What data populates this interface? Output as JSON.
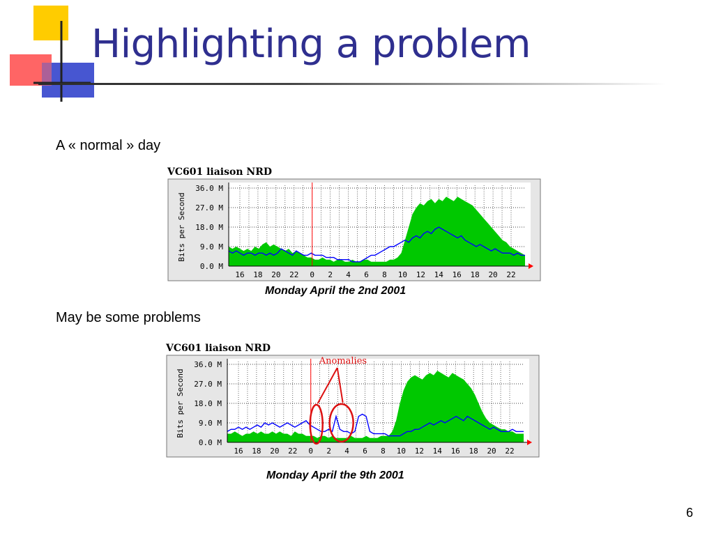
{
  "slide": {
    "title": "Highlighting a problem",
    "section1_text": "A « normal » day",
    "section2_text": "May be some problems",
    "page_number": "6"
  },
  "colors": {
    "title": "#2f2f8f",
    "traffic_in": "#00c800",
    "traffic_out": "#0000ff",
    "anomaly": "#dd1111",
    "chart_bg": "#ffffff",
    "frame_bg": "#e6e6e6"
  },
  "chart_data": [
    {
      "type": "area",
      "title": "VC601 liaison NRD",
      "caption": "Monday April  the 2nd 2001",
      "ylabel": "Bits per Second",
      "yticks": [
        "36.0 M",
        "27.0 M",
        "18.0 M",
        "9.0 M",
        "0.0 M"
      ],
      "ylim": [
        0,
        36
      ],
      "xticks": [
        "16",
        "18",
        "20",
        "22",
        "0",
        "2",
        "4",
        "6",
        "8",
        "10",
        "12",
        "14",
        "16",
        "18",
        "20",
        "22"
      ],
      "grid": true,
      "marker_hour": 0,
      "series": [
        {
          "values": [
            9,
            8,
            9,
            8,
            7,
            8,
            7,
            9,
            8,
            10,
            11,
            9,
            10,
            9,
            8,
            7,
            8,
            6,
            7,
            6,
            5,
            4,
            4,
            3,
            3,
            4,
            3,
            3,
            2,
            3,
            3,
            2,
            2,
            3,
            2,
            2,
            3,
            3,
            2,
            2,
            2,
            2,
            2,
            3,
            3,
            4,
            6,
            12,
            18,
            24,
            27,
            29,
            28,
            30,
            31,
            29,
            31,
            30,
            32,
            31,
            30,
            32,
            31,
            30,
            29,
            28,
            26,
            24,
            22,
            20,
            18,
            16,
            14,
            12,
            11,
            9,
            8,
            7,
            6,
            5
          ]
        },
        {
          "values": [
            7,
            6,
            7,
            6,
            5,
            6,
            6,
            5,
            6,
            6,
            5,
            6,
            5,
            6,
            8,
            7,
            6,
            5,
            7,
            6,
            5,
            5,
            6,
            5,
            5,
            5,
            4,
            4,
            4,
            3,
            3,
            3,
            3,
            2,
            2,
            2,
            3,
            4,
            5,
            5,
            6,
            7,
            8,
            9,
            9,
            10,
            11,
            12,
            11,
            13,
            14,
            13,
            15,
            16,
            15,
            17,
            18,
            17,
            16,
            15,
            14,
            13,
            14,
            12,
            11,
            10,
            9,
            10,
            9,
            8,
            7,
            8,
            7,
            6,
            6,
            6,
            5,
            6,
            5,
            5
          ]
        }
      ]
    },
    {
      "type": "area",
      "title": "VC601 liaison NRD",
      "caption": "Monday April the 9th 2001",
      "ylabel": "Bits per Second",
      "yticks": [
        "36.0 M",
        "27.0 M",
        "18.0 M",
        "9.0 M",
        "0.0 M"
      ],
      "ylim": [
        0,
        36
      ],
      "xticks": [
        "16",
        "18",
        "20",
        "22",
        "0",
        "2",
        "4",
        "6",
        "8",
        "10",
        "12",
        "14",
        "16",
        "18",
        "20",
        "22"
      ],
      "grid": true,
      "marker_hour": 0,
      "annotation": "Anomalies",
      "series": [
        {
          "values": [
            4,
            4,
            5,
            4,
            3,
            4,
            4,
            5,
            4,
            5,
            4,
            4,
            5,
            4,
            5,
            4,
            4,
            3,
            5,
            4,
            4,
            3,
            3,
            3,
            2,
            3,
            3,
            2,
            3,
            2,
            2,
            2,
            2,
            3,
            2,
            2,
            2,
            3,
            2,
            2,
            2,
            3,
            3,
            3,
            5,
            10,
            18,
            24,
            28,
            30,
            31,
            30,
            29,
            31,
            32,
            31,
            33,
            32,
            31,
            30,
            32,
            31,
            30,
            29,
            27,
            25,
            22,
            18,
            14,
            11,
            9,
            8,
            7,
            6,
            6,
            5,
            5,
            4,
            4,
            4
          ]
        },
        {
          "values": [
            5,
            6,
            6,
            7,
            6,
            7,
            6,
            7,
            8,
            7,
            9,
            8,
            9,
            8,
            7,
            8,
            9,
            8,
            7,
            8,
            9,
            10,
            8,
            7,
            6,
            5,
            5,
            6,
            5,
            12,
            6,
            5,
            5,
            4,
            5,
            12,
            13,
            12,
            5,
            4,
            4,
            4,
            4,
            3,
            3,
            3,
            3,
            4,
            5,
            5,
            6,
            6,
            7,
            8,
            9,
            8,
            9,
            10,
            9,
            10,
            11,
            12,
            11,
            10,
            12,
            11,
            10,
            9,
            8,
            7,
            6,
            7,
            6,
            5,
            5,
            5,
            6,
            5,
            5,
            5
          ]
        }
      ]
    }
  ]
}
